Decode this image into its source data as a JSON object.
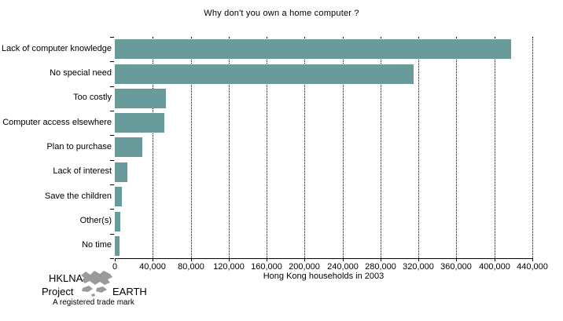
{
  "chart_data": {
    "type": "bar",
    "orientation": "horizontal",
    "title": "Why don't you own a home computer ?",
    "categories": [
      "Lack of computer knowledge",
      "No special need",
      "Too costly",
      "Computer access elsewhere",
      "Plan to purchase",
      "Lack of interest",
      "Save the children",
      "Other(s)",
      "No time"
    ],
    "values": [
      418000,
      315000,
      54000,
      52000,
      29000,
      13000,
      7500,
      6000,
      5000
    ],
    "xlabel": "Hong Kong households in 2003",
    "ylabel": "",
    "xlim": [
      0,
      440000
    ],
    "xtick_step": 40000,
    "xtick_labels": [
      "0",
      "40,000",
      "80,000",
      "120,000",
      "160,000",
      "200,000",
      "240,000",
      "280,000",
      "320,000",
      "360,000",
      "400,000",
      "440,000"
    ],
    "grid": "vertical-dotted",
    "legend": "none"
  },
  "branding": {
    "line1": "HKLNA",
    "line2_left": "Project",
    "line2_right": "EARTH",
    "trademark_note": "A registered trade mark",
    "map_icon": "hong-kong-map"
  },
  "colors": {
    "bar": "#699b9a",
    "grid": "#000000",
    "text": "#000000",
    "background": "#ffffff",
    "brand_map": "#9a9a9a"
  }
}
